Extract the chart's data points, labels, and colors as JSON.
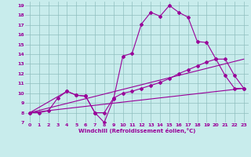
{
  "xlabel": "Windchill (Refroidissement éolien,°C)",
  "bg_color": "#c8ecec",
  "line_color": "#990099",
  "grid_color": "#a0c8c8",
  "xlim": [
    -0.5,
    23.5
  ],
  "ylim": [
    7,
    19.4
  ],
  "yticks": [
    7,
    8,
    9,
    10,
    11,
    12,
    13,
    14,
    15,
    16,
    17,
    18,
    19
  ],
  "xticks": [
    0,
    1,
    2,
    3,
    4,
    5,
    6,
    7,
    8,
    9,
    10,
    11,
    12,
    13,
    14,
    15,
    16,
    17,
    18,
    19,
    20,
    21,
    22,
    23
  ],
  "line1_x": [
    0,
    1,
    2,
    3,
    4,
    5,
    6,
    7,
    8,
    9,
    10,
    11,
    12,
    13,
    14,
    15,
    16,
    17,
    18,
    19,
    20,
    21,
    22,
    23
  ],
  "line1_y": [
    8.0,
    8.0,
    8.2,
    9.5,
    10.2,
    9.8,
    9.7,
    8.0,
    7.0,
    9.4,
    13.8,
    14.1,
    17.1,
    18.3,
    17.9,
    19.0,
    18.3,
    17.8,
    15.3,
    15.2,
    13.5,
    11.8,
    10.5,
    10.5
  ],
  "line2_x": [
    0,
    4,
    5,
    6,
    7,
    8,
    9,
    10,
    11,
    12,
    13,
    14,
    15,
    16,
    17,
    18,
    19,
    20,
    21,
    22,
    23
  ],
  "line2_y": [
    8.0,
    10.2,
    9.8,
    9.7,
    8.0,
    8.0,
    9.5,
    10.0,
    10.2,
    10.5,
    10.8,
    11.1,
    11.5,
    12.0,
    12.4,
    12.8,
    13.2,
    13.5,
    13.5,
    11.8,
    10.5
  ],
  "line3_x": [
    0,
    23
  ],
  "line3_y": [
    8.0,
    10.5
  ],
  "line4_x": [
    0,
    23
  ],
  "line4_y": [
    8.0,
    13.5
  ]
}
